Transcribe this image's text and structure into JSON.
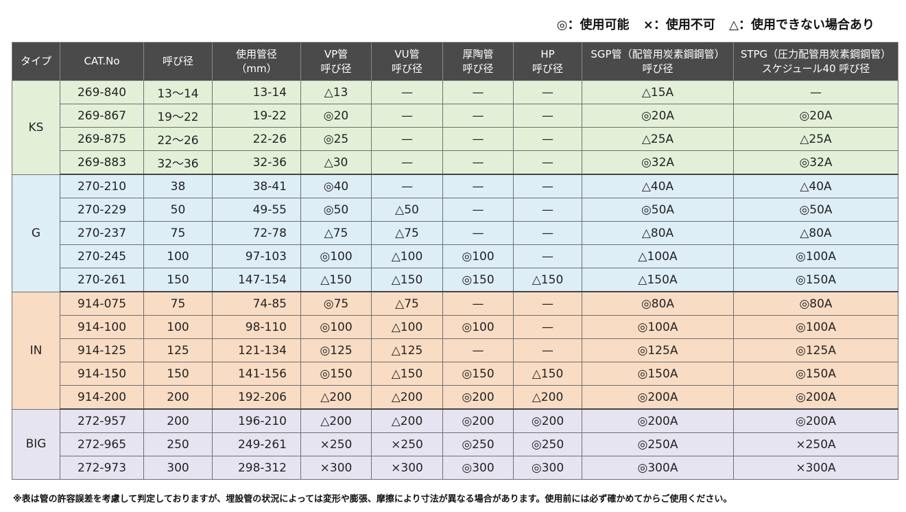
{
  "legend": {
    "ok": "◎：使用可能",
    "ng": "×：使用不可",
    "maybe": "△：使用できない場合あり"
  },
  "headers": [
    {
      "line1": "タイプ",
      "line2": ""
    },
    {
      "line1": "CAT.No",
      "line2": ""
    },
    {
      "line1": "呼び径",
      "line2": ""
    },
    {
      "line1": "使用管径",
      "line2": "（mm）"
    },
    {
      "line1": "VP管",
      "line2": "呼び径"
    },
    {
      "line1": "VU管",
      "line2": "呼び径"
    },
    {
      "line1": "厚陶管",
      "line2": "呼び径"
    },
    {
      "line1": "HP",
      "line2": "呼び径"
    },
    {
      "line1": "SGP管（配管用炭素鋼鋼管）",
      "line2": "呼び径"
    },
    {
      "line1": "STPG（圧力配管用炭素鋼鋼管）",
      "line2": "スケジュール40 呼び径"
    }
  ],
  "groups": [
    {
      "type": "KS",
      "rows": [
        [
          "269-840",
          "13〜14",
          "13-14",
          "△13",
          "—",
          "—",
          "—",
          "△15A",
          "—"
        ],
        [
          "269-867",
          "19〜22",
          "19-22",
          "◎20",
          "—",
          "—",
          "—",
          "◎20A",
          "◎20A"
        ],
        [
          "269-875",
          "22〜26",
          "22-26",
          "◎25",
          "—",
          "—",
          "—",
          "△25A",
          "△25A"
        ],
        [
          "269-883",
          "32〜36",
          "32-36",
          "△30",
          "—",
          "—",
          "—",
          "◎32A",
          "◎32A"
        ]
      ]
    },
    {
      "type": "G",
      "rows": [
        [
          "270-210",
          "38",
          "38-41",
          "◎40",
          "—",
          "—",
          "—",
          "△40A",
          "△40A"
        ],
        [
          "270-229",
          "50",
          "49-55",
          "◎50",
          "△50",
          "—",
          "—",
          "◎50A",
          "◎50A"
        ],
        [
          "270-237",
          "75",
          "72-78",
          "△75",
          "△75",
          "—",
          "—",
          "△80A",
          "△80A"
        ],
        [
          "270-245",
          "100",
          "97-103",
          "◎100",
          "△100",
          "◎100",
          "—",
          "△100A",
          "◎100A"
        ],
        [
          "270-261",
          "150",
          "147-154",
          "△150",
          "△150",
          "◎150",
          "△150",
          "△150A",
          "◎150A"
        ]
      ]
    },
    {
      "type": "IN",
      "rows": [
        [
          "914-075",
          "75",
          "74-85",
          "◎75",
          "△75",
          "—",
          "—",
          "◎80A",
          "◎80A"
        ],
        [
          "914-100",
          "100",
          "98-110",
          "◎100",
          "△100",
          "◎100",
          "—",
          "◎100A",
          "◎100A"
        ],
        [
          "914-125",
          "125",
          "121-134",
          "◎125",
          "△125",
          "—",
          "—",
          "◎125A",
          "◎125A"
        ],
        [
          "914-150",
          "150",
          "141-156",
          "◎150",
          "△150",
          "◎150",
          "△150",
          "◎150A",
          "◎150A"
        ],
        [
          "914-200",
          "200",
          "192-206",
          "△200",
          "△200",
          "◎200",
          "△200",
          "◎200A",
          "◎200A"
        ]
      ]
    },
    {
      "type": "BIG",
      "rows": [
        [
          "272-957",
          "200",
          "196-210",
          "△200",
          "△200",
          "◎200",
          "◎200",
          "◎200A",
          "◎200A"
        ],
        [
          "272-965",
          "250",
          "249-261",
          "×250",
          "×250",
          "◎250",
          "◎250",
          "◎250A",
          "×250A"
        ],
        [
          "272-973",
          "300",
          "298-312",
          "×300",
          "×300",
          "◎300",
          "◎300",
          "◎300A",
          "×300A"
        ]
      ]
    }
  ],
  "note": "※表は管の許容誤差を考慮して判定しておりますが、埋設管の状況によっては変形や膨張、摩擦により寸法が異なる場合があります。使用前には必ず確かめてからご使用ください。"
}
